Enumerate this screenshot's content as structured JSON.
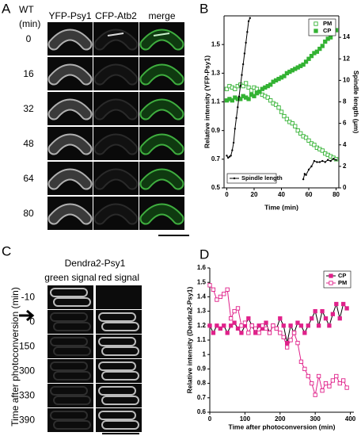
{
  "panels": {
    "A": {
      "label": "A",
      "genotype": "WT",
      "unit": "(min)",
      "columns": [
        "YFP-Psy1",
        "CFP-Atb2",
        "merge"
      ],
      "rows": [
        "0",
        "16",
        "32",
        "48",
        "64",
        "80"
      ]
    },
    "C": {
      "label": "C",
      "title": "Dendra2-Psy1",
      "columns": [
        "green signal",
        "red signal"
      ],
      "rows": [
        "-10",
        "0",
        "150",
        "300",
        "330",
        "390"
      ],
      "ylabel": "Time after photoconversion (min)"
    }
  },
  "chart_data": [
    {
      "type": "line",
      "panel_label": "B",
      "xlabel": "Time (min)",
      "ylabel": "Relative intensity (YFP-Psy1)",
      "y2label": "Spindle length (μm)",
      "xlim": [
        -2,
        82
      ],
      "xticks": [
        0,
        20,
        40,
        60,
        80
      ],
      "ylim": [
        0.5,
        1.7
      ],
      "yticks": [
        0.5,
        0.7,
        0.9,
        1.1,
        1.3,
        1.5
      ],
      "y2lim": [
        0,
        16
      ],
      "y2ticks": [
        0,
        2,
        4,
        6,
        8,
        10,
        12,
        14
      ],
      "legend": "upper right",
      "series": [
        {
          "name": "PM",
          "color": "#33b233",
          "marker": "open-square",
          "line": false,
          "x": [
            0,
            2,
            4,
            6,
            8,
            10,
            12,
            14,
            16,
            18,
            20,
            22,
            24,
            26,
            28,
            30,
            32,
            34,
            36,
            38,
            40,
            42,
            44,
            46,
            48,
            50,
            52,
            54,
            56,
            58,
            60,
            62,
            64,
            66,
            68,
            70,
            72,
            74,
            76,
            78,
            80
          ],
          "values": [
            1.19,
            1.21,
            1.2,
            1.19,
            1.21,
            1.22,
            1.21,
            1.23,
            1.2,
            1.18,
            1.2,
            1.19,
            1.17,
            1.15,
            1.14,
            1.13,
            1.11,
            1.09,
            1.08,
            1.06,
            1.03,
            1.0,
            0.98,
            0.96,
            0.95,
            0.93,
            0.9,
            0.88,
            0.86,
            0.85,
            0.83,
            0.81,
            0.8,
            0.78,
            0.77,
            0.76,
            0.74,
            0.73,
            0.72,
            0.71,
            0.7
          ]
        },
        {
          "name": "CP",
          "color": "#33b233",
          "marker": "filled-square",
          "line": false,
          "x": [
            0,
            2,
            4,
            6,
            8,
            10,
            12,
            14,
            16,
            18,
            20,
            22,
            24,
            26,
            28,
            30,
            32,
            34,
            36,
            38,
            40,
            42,
            44,
            46,
            48,
            50,
            52,
            54,
            56,
            58,
            60,
            62,
            64,
            66,
            68,
            70,
            72,
            74,
            76,
            78,
            80
          ],
          "values": [
            1.11,
            1.12,
            1.11,
            1.13,
            1.12,
            1.12,
            1.14,
            1.13,
            1.12,
            1.15,
            1.14,
            1.16,
            1.17,
            1.19,
            1.2,
            1.21,
            1.22,
            1.24,
            1.25,
            1.26,
            1.27,
            1.28,
            1.3,
            1.31,
            1.32,
            1.33,
            1.34,
            1.35,
            1.36,
            1.38,
            1.4,
            1.42,
            1.44,
            1.45,
            1.47,
            1.49,
            1.52,
            1.54,
            1.55,
            1.58,
            1.6
          ]
        },
        {
          "name": "Spindle length",
          "color": "#000000",
          "marker": "dot",
          "line": true,
          "axis": "y2",
          "legend": "lower left",
          "x": [
            0,
            1,
            2,
            3,
            4,
            5,
            6,
            7,
            8,
            9,
            10,
            11,
            12,
            13,
            14,
            15,
            16,
            17,
            30,
            56,
            57,
            58,
            60,
            62,
            64,
            66,
            68,
            70,
            72,
            74,
            76,
            78,
            80
          ],
          "values": [
            3.0,
            2.8,
            2.9,
            3.0,
            3.5,
            4.2,
            5.5,
            6.5,
            7.5,
            8.5,
            9.5,
            10.5,
            11.5,
            12.5,
            13.5,
            14.5,
            15.5,
            15.8,
            null,
            0.8,
            1.3,
            1.2,
            1.7,
            2.0,
            2.5,
            2.4,
            2.4,
            2.5,
            2.4,
            2.6,
            2.5,
            2.7,
            2.6
          ]
        }
      ]
    },
    {
      "type": "line",
      "panel_label": "D",
      "xlabel": "Time after photoconversion (min)",
      "ylabel": "Relative intensity (Dendra2-Psy1)",
      "xlim": [
        0,
        410
      ],
      "xticks": [
        0,
        100,
        200,
        300,
        400
      ],
      "ylim": [
        0.6,
        1.6
      ],
      "yticks": [
        0.6,
        0.7,
        0.8,
        0.9,
        1,
        1.1,
        1.2,
        1.3,
        1.4,
        1.5,
        1.6
      ],
      "legend": "upper right",
      "x": [
        0,
        10,
        20,
        30,
        40,
        50,
        60,
        70,
        80,
        90,
        100,
        110,
        120,
        130,
        140,
        150,
        160,
        170,
        180,
        190,
        200,
        210,
        220,
        230,
        240,
        250,
        260,
        270,
        280,
        290,
        300,
        310,
        320,
        330,
        340,
        350,
        360,
        370,
        380,
        390
      ],
      "series": [
        {
          "name": "CP",
          "color": "#000000",
          "marker_color": "#e0218a",
          "marker": "filled-square",
          "line": true,
          "values": [
            1.2,
            1.15,
            1.2,
            1.18,
            1.2,
            1.15,
            1.2,
            1.22,
            1.18,
            1.15,
            1.2,
            1.25,
            1.2,
            1.15,
            1.2,
            1.18,
            1.22,
            1.15,
            1.2,
            1.18,
            1.25,
            1.2,
            1.08,
            1.2,
            1.15,
            1.22,
            1.2,
            1.15,
            1.2,
            1.25,
            1.3,
            1.2,
            1.3,
            1.25,
            1.2,
            1.28,
            1.35,
            1.25,
            1.35,
            1.32
          ]
        },
        {
          "name": "PM",
          "color": "#e0218a",
          "marker": "open-square",
          "line": true,
          "values": [
            1.48,
            1.45,
            1.38,
            1.4,
            1.42,
            1.45,
            1.25,
            1.3,
            1.32,
            1.2,
            1.22,
            1.15,
            1.2,
            1.18,
            1.15,
            1.2,
            1.18,
            1.15,
            1.2,
            1.18,
            1.15,
            1.12,
            1.05,
            1.1,
            1.15,
            1.08,
            0.95,
            0.9,
            0.85,
            0.8,
            0.72,
            0.85,
            0.75,
            0.8,
            0.78,
            0.82,
            0.85,
            0.8,
            0.82,
            0.77
          ]
        }
      ]
    }
  ]
}
